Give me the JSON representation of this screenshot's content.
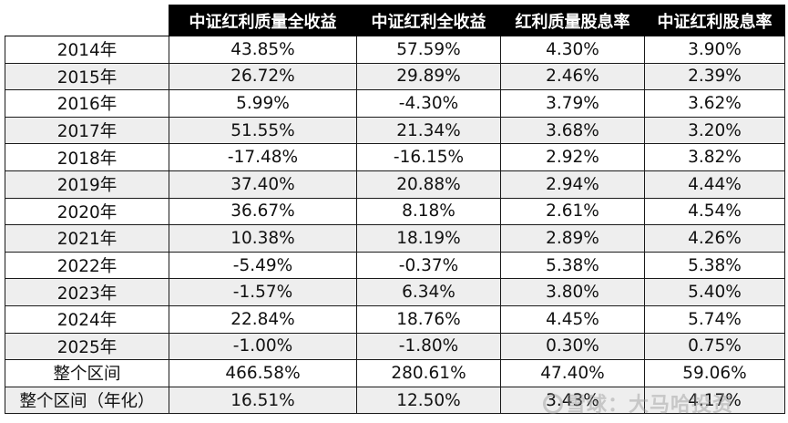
{
  "table": {
    "headers": [
      "",
      "中证红利质量全收益",
      "中证红利全收益",
      "红利质量股息率",
      "中证红利股息率"
    ],
    "rows": [
      {
        "label": "2014年",
        "values": [
          "43.85%",
          "57.59%",
          "4.30%",
          "3.90%"
        ]
      },
      {
        "label": "2015年",
        "values": [
          "26.72%",
          "29.89%",
          "2.46%",
          "2.39%"
        ]
      },
      {
        "label": "2016年",
        "values": [
          "5.99%",
          "-4.30%",
          "3.79%",
          "3.62%"
        ]
      },
      {
        "label": "2017年",
        "values": [
          "51.55%",
          "21.34%",
          "3.68%",
          "3.20%"
        ]
      },
      {
        "label": "2018年",
        "values": [
          "-17.48%",
          "-16.15%",
          "2.92%",
          "3.82%"
        ]
      },
      {
        "label": "2019年",
        "values": [
          "37.40%",
          "20.88%",
          "2.94%",
          "4.44%"
        ]
      },
      {
        "label": "2020年",
        "values": [
          "36.67%",
          "8.18%",
          "2.61%",
          "4.54%"
        ]
      },
      {
        "label": "2021年",
        "values": [
          "10.38%",
          "18.19%",
          "2.89%",
          "4.26%"
        ]
      },
      {
        "label": "2022年",
        "values": [
          "-5.49%",
          "-0.37%",
          "5.38%",
          "5.38%"
        ]
      },
      {
        "label": "2023年",
        "values": [
          "-1.57%",
          "6.34%",
          "3.80%",
          "5.40%"
        ]
      },
      {
        "label": "2024年",
        "values": [
          "22.84%",
          "18.76%",
          "4.45%",
          "5.74%"
        ]
      },
      {
        "label": "2025年",
        "values": [
          "-1.00%",
          "-1.80%",
          "0.30%",
          "0.75%"
        ]
      },
      {
        "label": "整个区间",
        "values": [
          "466.58%",
          "280.61%",
          "47.40%",
          "59.06%"
        ]
      },
      {
        "label": "整个区间（年化）",
        "values": [
          "16.51%",
          "12.50%",
          "3.43%",
          "4.17%"
        ]
      }
    ]
  },
  "watermark": {
    "text": "雪球：大马哈投资",
    "icon": "snowball-logo-icon"
  },
  "colors": {
    "header_bg": "#000000",
    "header_text": "#ffffff",
    "row_shade": "#eeeeee",
    "row_plain": "#ffffff",
    "border": "#1a1a1a"
  }
}
